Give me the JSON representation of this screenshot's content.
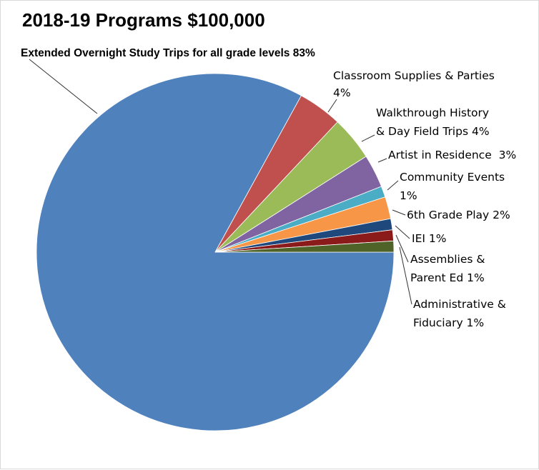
{
  "chart_data": {
    "type": "pie",
    "title": "2018-19 Programs $100,000",
    "slices": [
      {
        "label": "Extended Overnight Study Trips for all grade levels 83%",
        "value": 83,
        "color": "#4F81BD"
      },
      {
        "label": "Classroom Supplies & Parties 4%",
        "value": 4,
        "color": "#C0504D"
      },
      {
        "label": "Walkthrough History & Day Field Trips 4%",
        "value": 4,
        "color": "#9BBB59"
      },
      {
        "label": "Artist in Residence  3%",
        "value": 3,
        "color": "#8064A2"
      },
      {
        "label": "Community Events 1%",
        "value": 1,
        "color": "#4BACC6"
      },
      {
        "label": "6th Grade Play 2%",
        "value": 2,
        "color": "#F79646"
      },
      {
        "label": "IEI 1%",
        "value": 1,
        "color": "#1F497D"
      },
      {
        "label": "Assemblies & Parent Ed 1%",
        "value": 1,
        "color": "#8B1A1A"
      },
      {
        "label": "Administrative & Fiduciary 1%",
        "value": 1,
        "color": "#4F6228"
      }
    ]
  }
}
